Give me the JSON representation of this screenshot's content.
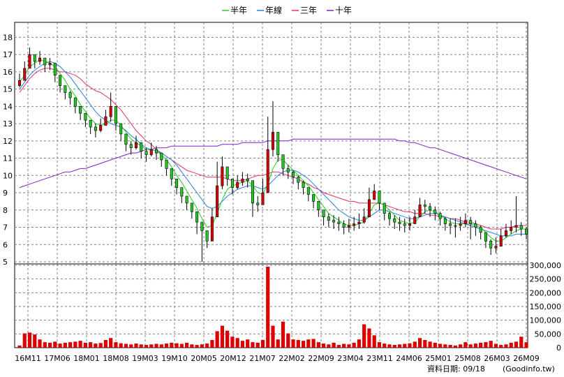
{
  "chart_data": [
    {
      "type": "candlestick",
      "legend": [
        {
          "label": "半年",
          "color": "#22cc22"
        },
        {
          "label": "年線",
          "color": "#2a7fe0"
        },
        {
          "label": "三年",
          "color": "#e0306a"
        },
        {
          "label": "十年",
          "color": "#7a22c8"
        }
      ],
      "ylim": [
        5,
        18.5
      ],
      "y_ticks": [
        "18",
        "17",
        "16",
        "15",
        "14",
        "13",
        "12",
        "11",
        "10",
        "9",
        "8",
        "7",
        "6",
        "5"
      ],
      "x_ticks": [
        "16M11",
        "17M06",
        "18M01",
        "18M08",
        "19M03",
        "19M10",
        "20M05",
        "20M12",
        "21M07",
        "22M02",
        "22M09",
        "23M04",
        "23M11",
        "24M06",
        "25M01",
        "25M08",
        "26M03",
        "26M09"
      ],
      "colors": {
        "up": "#dd0000",
        "down": "#ffffff",
        "down_fill_series": "#22cc22",
        "grid": "#808080"
      },
      "close": [
        15.5,
        16.2,
        17.0,
        16.6,
        16.8,
        16.4,
        16.5,
        15.8,
        15.2,
        14.8,
        14.5,
        14.0,
        13.6,
        13.2,
        12.8,
        12.6,
        12.9,
        13.4,
        14.0,
        13.0,
        12.4,
        11.8,
        11.6,
        11.9,
        11.4,
        11.2,
        11.5,
        11.3,
        10.9,
        10.4,
        9.8,
        9.3,
        8.8,
        8.4,
        7.9,
        7.3,
        6.8,
        6.2,
        7.6,
        9.4,
        10.5,
        9.8,
        9.3,
        9.6,
        9.8,
        9.7,
        8.4,
        8.3,
        9.0,
        11.5,
        12.5,
        11.2,
        10.4,
        10.2,
        9.9,
        9.6,
        9.3,
        8.9,
        8.5,
        8.0,
        7.6,
        7.4,
        7.3,
        7.2,
        7.0,
        7.1,
        7.2,
        7.3,
        7.6,
        8.6,
        9.1,
        8.4,
        7.8,
        7.5,
        7.3,
        7.2,
        7.1,
        7.2,
        7.6,
        8.3,
        8.2,
        8.0,
        7.8,
        7.5,
        7.2,
        7.1,
        7.1,
        7.2,
        7.4,
        7.2,
        7.0,
        6.7,
        6.2,
        5.8,
        5.9,
        6.5,
        6.8,
        7.0,
        7.1,
        6.9,
        6.6
      ],
      "high": [
        15.9,
        16.6,
        17.4,
        17.0,
        17.2,
        16.8,
        16.8,
        16.2,
        15.6,
        15.2,
        14.9,
        14.4,
        14.0,
        13.6,
        13.2,
        13.0,
        13.3,
        13.8,
        14.8,
        13.4,
        12.8,
        12.2,
        12.0,
        12.3,
        11.8,
        11.6,
        11.9,
        11.7,
        11.3,
        10.8,
        10.2,
        9.7,
        9.2,
        8.8,
        8.3,
        7.8,
        7.3,
        6.8,
        8.1,
        10.8,
        11.1,
        10.3,
        9.7,
        10.0,
        10.2,
        10.1,
        8.9,
        8.8,
        9.8,
        13.4,
        14.3,
        11.8,
        10.9,
        10.6,
        10.3,
        10.0,
        9.7,
        9.3,
        8.9,
        8.4,
        8.0,
        7.8,
        7.7,
        7.6,
        7.4,
        7.5,
        7.6,
        7.8,
        8.1,
        9.3,
        9.5,
        8.8,
        8.2,
        7.9,
        7.7,
        7.6,
        7.5,
        7.6,
        8.0,
        8.7,
        8.6,
        8.4,
        8.2,
        7.9,
        7.6,
        7.5,
        7.5,
        7.6,
        7.8,
        7.6,
        7.4,
        7.1,
        6.6,
        6.3,
        6.4,
        6.9,
        7.2,
        7.4,
        8.8,
        7.3,
        7.0
      ],
      "low": [
        15.1,
        15.8,
        16.6,
        16.2,
        16.4,
        16.0,
        16.1,
        15.4,
        14.8,
        14.4,
        14.1,
        13.6,
        13.2,
        12.8,
        12.4,
        12.2,
        12.5,
        13.0,
        13.1,
        12.6,
        12.0,
        11.4,
        11.2,
        11.5,
        11.0,
        10.8,
        11.1,
        10.9,
        10.5,
        10.0,
        9.4,
        8.9,
        8.4,
        8.0,
        7.5,
        6.6,
        5.0,
        5.8,
        7.2,
        8.8,
        9.2,
        9.4,
        8.9,
        9.2,
        9.4,
        9.3,
        7.6,
        7.9,
        8.6,
        10.3,
        11.1,
        10.8,
        10.0,
        9.8,
        9.5,
        9.2,
        8.9,
        8.5,
        8.1,
        7.6,
        7.1,
        7.0,
        6.9,
        6.8,
        6.6,
        6.7,
        6.8,
        6.9,
        7.2,
        8.2,
        8.6,
        8.0,
        7.4,
        7.1,
        6.9,
        6.8,
        6.7,
        6.8,
        7.2,
        7.9,
        7.8,
        7.6,
        7.4,
        7.1,
        6.8,
        6.6,
        6.4,
        6.8,
        7.0,
        6.3,
        6.5,
        6.3,
        5.8,
        5.4,
        5.5,
        6.1,
        6.4,
        6.6,
        6.7,
        6.5,
        6.3
      ],
      "ma_half": [
        15.4,
        15.8,
        16.3,
        16.5,
        16.7,
        16.6,
        16.5,
        16.3,
        15.9,
        15.5,
        15.0,
        14.6,
        14.1,
        13.7,
        13.3,
        13.0,
        12.9,
        13.0,
        13.2,
        13.2,
        12.9,
        12.5,
        12.1,
        11.9,
        11.7,
        11.5,
        11.5,
        11.4,
        11.2,
        10.9,
        10.5,
        10.0,
        9.6,
        9.1,
        8.6,
        8.1,
        7.5,
        7.0,
        7.1,
        7.8,
        8.6,
        9.2,
        9.4,
        9.5,
        9.6,
        9.7,
        9.4,
        9.0,
        8.9,
        9.5,
        10.4,
        10.9,
        10.9,
        10.6,
        10.3,
        10.0,
        9.7,
        9.4,
        9.0,
        8.6,
        8.2,
        7.8,
        7.6,
        7.4,
        7.2,
        7.1,
        7.1,
        7.2,
        7.3,
        7.8,
        8.3,
        8.4,
        8.3,
        8.0,
        7.7,
        7.4,
        7.3,
        7.2,
        7.3,
        7.6,
        7.9,
        8.0,
        7.9,
        7.7,
        7.5,
        7.3,
        7.2,
        7.2,
        7.2,
        7.2,
        7.1,
        7.0,
        6.7,
        6.4,
        6.2,
        6.2,
        6.4,
        6.6,
        6.8,
        6.9,
        6.9
      ],
      "ma_year": [
        15.0,
        15.4,
        15.8,
        16.1,
        16.3,
        16.5,
        16.6,
        16.5,
        16.3,
        16.0,
        15.7,
        15.3,
        14.9,
        14.5,
        14.1,
        13.7,
        13.4,
        13.2,
        13.0,
        12.9,
        12.8,
        12.6,
        12.3,
        12.1,
        11.8,
        11.6,
        11.5,
        11.4,
        11.3,
        11.1,
        10.9,
        10.6,
        10.2,
        9.8,
        9.4,
        9.0,
        8.6,
        8.2,
        8.1,
        8.2,
        8.5,
        8.8,
        9.0,
        9.2,
        9.3,
        9.4,
        9.4,
        9.3,
        9.2,
        9.4,
        9.7,
        10.0,
        10.2,
        10.3,
        10.3,
        10.2,
        10.0,
        9.8,
        9.5,
        9.2,
        8.9,
        8.6,
        8.3,
        8.0,
        7.8,
        7.6,
        7.5,
        7.4,
        7.4,
        7.6,
        7.8,
        8.0,
        8.0,
        7.9,
        7.8,
        7.7,
        7.6,
        7.5,
        7.5,
        7.6,
        7.7,
        7.8,
        7.8,
        7.7,
        7.6,
        7.5,
        7.4,
        7.3,
        7.2,
        7.1,
        7.0,
        6.9,
        6.8,
        6.7,
        6.6,
        6.5,
        6.5,
        6.5,
        6.6,
        6.6,
        6.6
      ],
      "ma_3y": [
        14.8,
        15.2,
        15.6,
        15.9,
        16.1,
        16.2,
        16.2,
        16.1,
        16.0,
        16.0,
        15.9,
        15.8,
        15.6,
        15.3,
        15.1,
        14.9,
        14.8,
        14.6,
        14.4,
        14.1,
        13.8,
        13.4,
        13.0,
        12.6,
        12.3,
        12.0,
        11.8,
        11.5,
        11.3,
        11.1,
        10.9,
        10.7,
        10.5,
        10.3,
        10.2,
        10.1,
        10.0,
        9.9,
        9.9,
        9.9,
        9.9,
        9.8,
        9.7,
        9.7,
        9.7,
        9.8,
        9.9,
        10.0,
        10.0,
        10.1,
        10.2,
        10.2,
        10.1,
        10.0,
        9.9,
        9.8,
        9.6,
        9.5,
        9.3,
        9.2,
        9.0,
        8.9,
        8.8,
        8.7,
        8.6,
        8.5,
        8.5,
        8.4,
        8.4,
        8.4,
        8.4,
        8.4,
        8.3,
        8.2,
        8.1,
        8.0,
        7.9,
        7.9,
        7.8,
        7.8,
        7.8,
        7.7,
        7.7,
        7.6,
        7.6,
        7.5,
        7.5,
        7.4,
        7.3,
        7.3,
        7.2,
        7.1,
        7.0,
        6.9,
        6.9,
        6.9,
        7.0,
        7.0,
        7.1,
        7.1,
        7.1
      ],
      "ma_10y": [
        9.3,
        9.4,
        9.5,
        9.6,
        9.7,
        9.8,
        9.9,
        10.0,
        10.1,
        10.2,
        10.2,
        10.3,
        10.4,
        10.4,
        10.5,
        10.6,
        10.7,
        10.8,
        10.9,
        11.0,
        11.1,
        11.2,
        11.3,
        11.3,
        11.4,
        11.5,
        11.5,
        11.6,
        11.6,
        11.6,
        11.7,
        11.7,
        11.7,
        11.7,
        11.7,
        11.7,
        11.7,
        11.7,
        11.7,
        11.7,
        11.8,
        11.8,
        11.8,
        11.8,
        11.9,
        11.9,
        11.9,
        11.9,
        11.9,
        12.0,
        12.0,
        12.0,
        12.0,
        12.0,
        12.1,
        12.1,
        12.1,
        12.1,
        12.1,
        12.1,
        12.1,
        12.1,
        12.1,
        12.1,
        12.1,
        12.1,
        12.1,
        12.1,
        12.1,
        12.1,
        12.1,
        12.1,
        12.1,
        12.1,
        12.1,
        12.0,
        12.0,
        11.9,
        11.9,
        11.8,
        11.7,
        11.6,
        11.6,
        11.5,
        11.4,
        11.3,
        11.2,
        11.1,
        11.0,
        10.9,
        10.8,
        10.7,
        10.6,
        10.5,
        10.4,
        10.3,
        10.2,
        10.1,
        10.0,
        9.9,
        9.8
      ]
    },
    {
      "type": "bar",
      "ylim": [
        0,
        300000
      ],
      "y_ticks": [
        "300,000",
        "250,000",
        "200,000",
        "150,000",
        "100,000",
        "50,000",
        "0"
      ],
      "color": "#dd0000",
      "values": [
        8000,
        52000,
        55000,
        48000,
        30000,
        20000,
        18000,
        22000,
        15000,
        18000,
        20000,
        22000,
        25000,
        18000,
        20000,
        15000,
        17000,
        28000,
        35000,
        20000,
        16000,
        14000,
        12000,
        15000,
        12000,
        10000,
        12000,
        14000,
        12000,
        15000,
        18000,
        16000,
        14000,
        18000,
        12000,
        10000,
        12000,
        15000,
        28000,
        60000,
        80000,
        62000,
        40000,
        35000,
        25000,
        30000,
        20000,
        18000,
        28000,
        295000,
        80000,
        30000,
        95000,
        52000,
        30000,
        28000,
        25000,
        30000,
        32000,
        20000,
        15000,
        12000,
        18000,
        10000,
        14000,
        12000,
        18000,
        30000,
        85000,
        70000,
        45000,
        20000,
        15000,
        12000,
        10000,
        12000,
        14000,
        16000,
        22000,
        35000,
        28000,
        22000,
        18000,
        14000,
        12000,
        10000,
        8000,
        12000,
        20000,
        12000,
        15000,
        18000,
        20000,
        25000,
        14000,
        10000,
        12000,
        18000,
        22000,
        40000,
        20000
      ]
    }
  ],
  "footer": {
    "date_text": "資料日期: 09/18",
    "source_text": "(Goodinfo.tw)"
  }
}
